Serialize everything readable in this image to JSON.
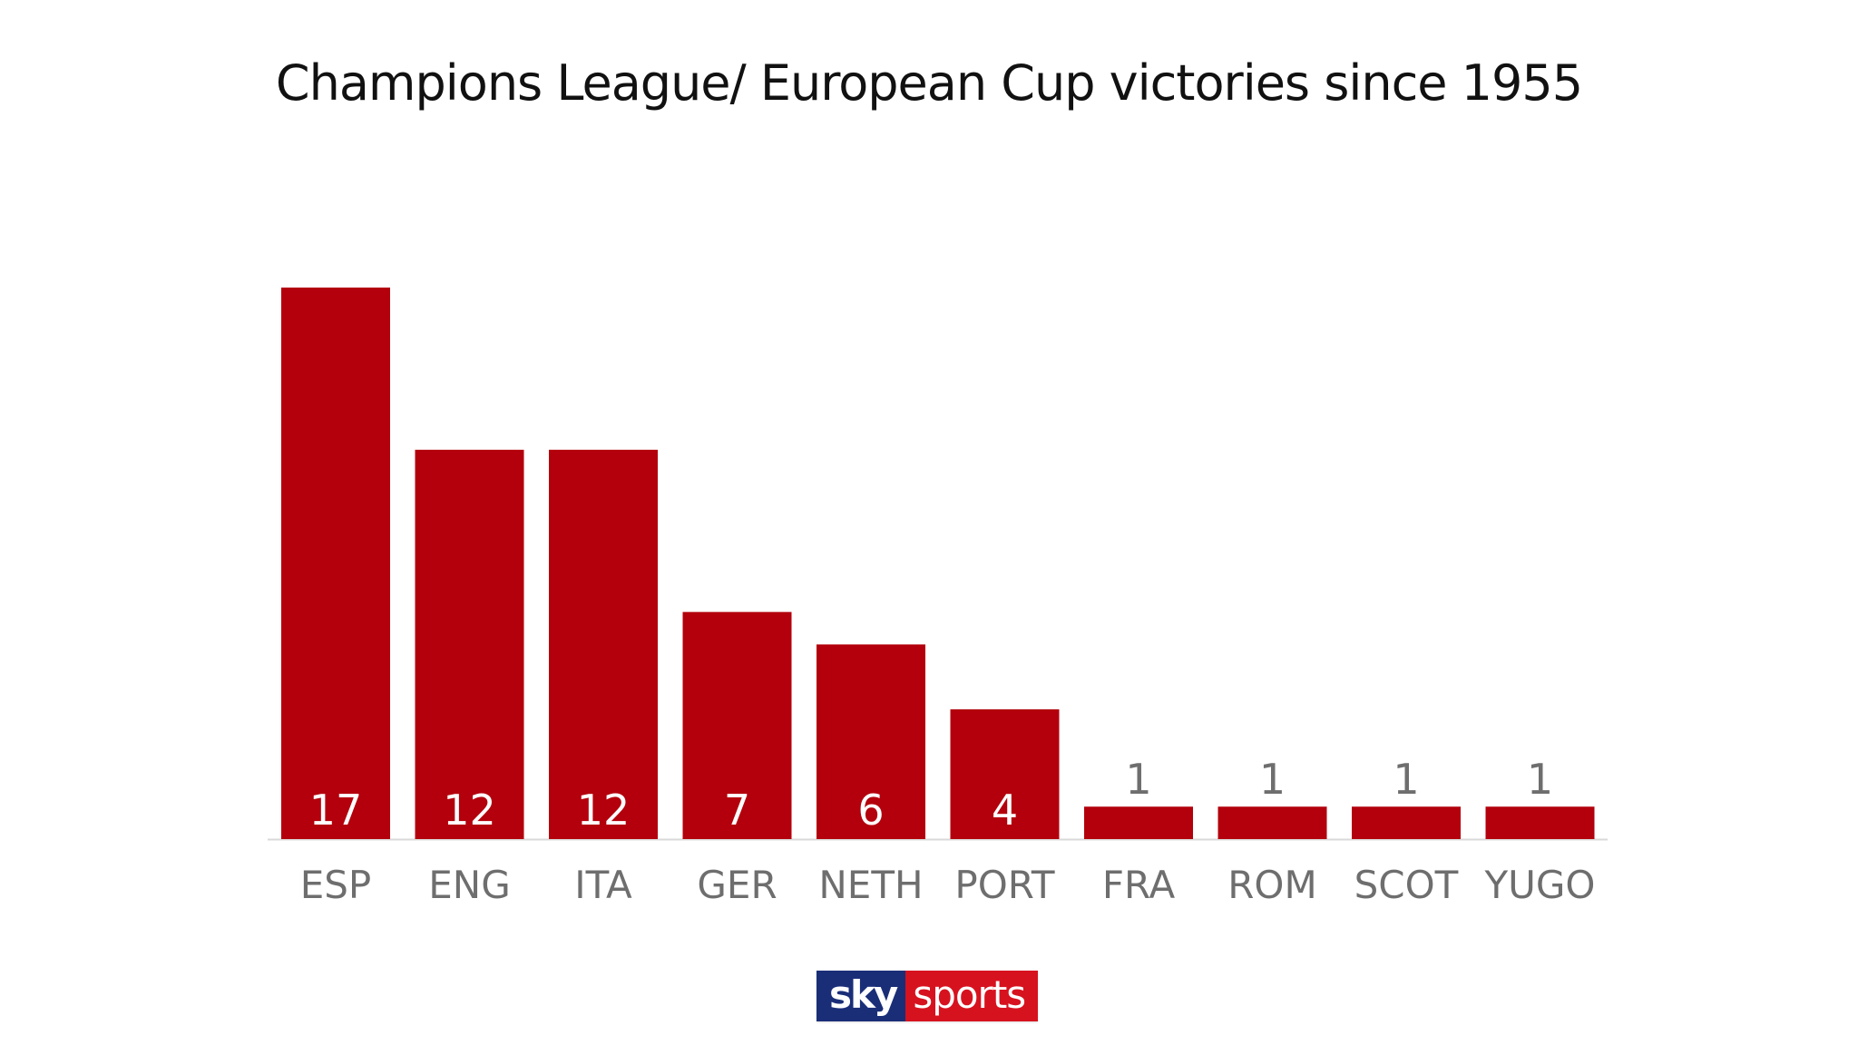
{
  "chart_data": {
    "type": "bar",
    "title": "Champions League/ European Cup victories since 1955",
    "categories": [
      "ESP",
      "ENG",
      "ITA",
      "GER",
      "NETH",
      "PORT",
      "FRA",
      "ROM",
      "SCOT",
      "YUGO"
    ],
    "values": [
      17,
      12,
      12,
      7,
      6,
      4,
      1,
      1,
      1,
      1
    ],
    "xlabel": "",
    "ylabel": "",
    "ylim": [
      0,
      17
    ],
    "bar_color": "#b3000c",
    "grid": false,
    "data_labels": true
  },
  "logo": {
    "sky": "sky",
    "sports": "sports"
  },
  "colors": {
    "bar": "#b3000c",
    "label_inside": "#ffffff",
    "label_outside": "#6e6e6e",
    "category_text": "#6e6e6e",
    "axis": "#d9d9d9",
    "logo_sky": "#1a2e78",
    "logo_sports": "#d7121f"
  }
}
